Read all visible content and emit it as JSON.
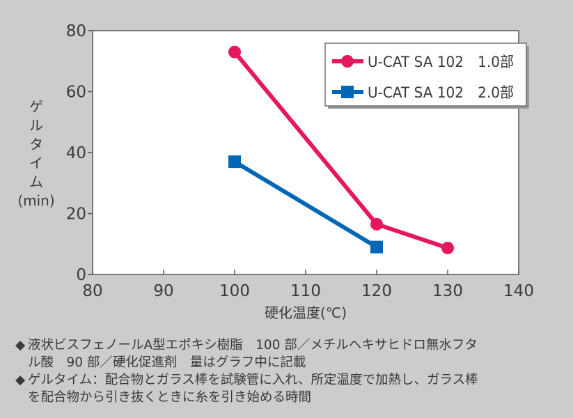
{
  "chart_data": {
    "type": "line",
    "title": "",
    "xlabel": "硬化温度(℃)",
    "ylabel": "ゲルタイム (min)",
    "ylabel_lines": [
      "ゲ",
      "ル",
      "タ",
      "イ",
      "ム",
      "(min)"
    ],
    "xlim": [
      80,
      140
    ],
    "ylim": [
      0,
      80
    ],
    "xticks": [
      80,
      90,
      100,
      110,
      120,
      130,
      140
    ],
    "yticks": [
      0,
      20,
      40,
      60,
      80
    ],
    "grid": false,
    "legend_position": "upper right",
    "series": [
      {
        "name": "U-CAT SA 102　1.0部",
        "color": "#e5175f",
        "marker": "circle",
        "x": [
          100,
          120,
          130
        ],
        "y": [
          73,
          16.5,
          8.7
        ]
      },
      {
        "name": "U-CAT SA 102　2.0部",
        "color": "#0068b7",
        "marker": "square",
        "x": [
          100,
          120
        ],
        "y": [
          37,
          9
        ]
      }
    ]
  },
  "notes": [
    {
      "bullet": "◆",
      "lines": [
        "液状ビスフェノールA型エポキシ樹脂　100 部／メチルヘキサヒドロ無水フタ",
        "ル酸　90 部／硬化促進剤　量はグラフ中に記載"
      ]
    },
    {
      "bullet": "◆",
      "lines": [
        "ゲルタイム：配合物とガラス棒を試験管に入れ、所定温度で加熱し、ガラス棒",
        "を配合物から引き抜くときに糸を引き始める時間"
      ]
    }
  ]
}
